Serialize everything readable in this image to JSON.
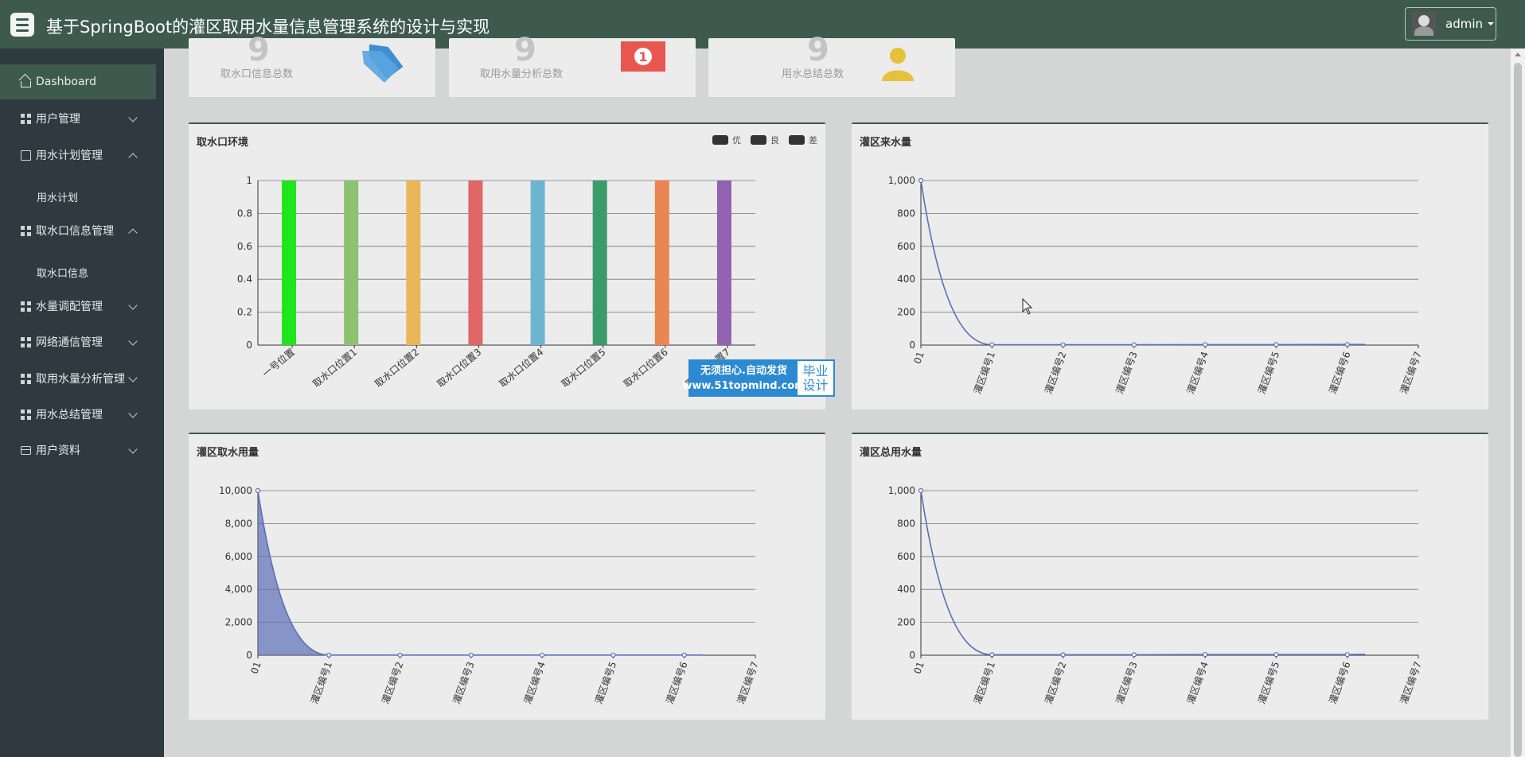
{
  "header": {
    "title": "基于SpringBoot的灌区取用水量信息管理系统的设计与实现",
    "user_name": "admin"
  },
  "sidebar": {
    "items": [
      {
        "label": "Dashboard",
        "icon": "home-icon",
        "active": true
      },
      {
        "label": "用户管理",
        "icon": "grid-icon",
        "expanded": false
      },
      {
        "label": "用水计划管理",
        "icon": "file-icon",
        "expanded": true,
        "children": [
          "用水计划"
        ]
      },
      {
        "label": "取水口信息管理",
        "icon": "grid-icon",
        "expanded": true,
        "children": [
          "取水口信息"
        ]
      },
      {
        "label": "水量调配管理",
        "icon": "grid-icon",
        "expanded": false
      },
      {
        "label": "网络通信管理",
        "icon": "grid-icon",
        "expanded": false
      },
      {
        "label": "取用水量分析管理",
        "icon": "grid-icon",
        "expanded": false
      },
      {
        "label": "用水总结管理",
        "icon": "grid-icon",
        "expanded": false
      },
      {
        "label": "用户资料",
        "icon": "card-icon",
        "expanded": false
      }
    ]
  },
  "stats": [
    {
      "label": "取水口信息总数",
      "value": "9",
      "icon": "tag-icon",
      "color": "#3d8fd1"
    },
    {
      "label": "取用水量分析总数",
      "value": "9",
      "icon": "money-icon",
      "color": "#e8574f"
    },
    {
      "label": "用水总结总数",
      "value": "9",
      "icon": "user-icon",
      "color": "#e6c13a"
    }
  ],
  "watermark": {
    "line1": "无须担心.自动发货",
    "line2": "www.51topmind.com",
    "right1": "毕业",
    "right2": "设计"
  },
  "chart_data": [
    {
      "type": "bar",
      "title": "取水口环境",
      "legend": [
        "优",
        "良",
        "差"
      ],
      "legend_position": "top-right",
      "categories": [
        "一号位置",
        "取水口位置1",
        "取水口位置2",
        "取水口位置3",
        "取水口位置4",
        "取水口位置5",
        "取水口位置6",
        "取水口位置7"
      ],
      "values": [
        1,
        1,
        1,
        1,
        1,
        1,
        1,
        1
      ],
      "colors": [
        "#1ee51e",
        "#8cc270",
        "#e9b65a",
        "#e06766",
        "#6db5cf",
        "#3d9a6b",
        "#ea8554",
        "#9362b1"
      ],
      "ylim": [
        0,
        1
      ],
      "yticks": [
        "0",
        "0.2",
        "0.4",
        "0.6",
        "0.8",
        "1"
      ],
      "grid": true
    },
    {
      "type": "line",
      "title": "灌区来水量",
      "categories": [
        "01",
        "灌区编号1",
        "灌区编号2",
        "灌区编号3",
        "灌区编号4",
        "灌区编号5",
        "灌区编号6",
        "灌区编号7"
      ],
      "values": [
        1000,
        2,
        2,
        2,
        3,
        3,
        4,
        4
      ],
      "ylim": [
        0,
        1000
      ],
      "yticks": [
        "0",
        "200",
        "400",
        "600",
        "800",
        "1,000"
      ],
      "color": "#5b6fb8",
      "grid": true
    },
    {
      "type": "area",
      "title": "灌区取水用量",
      "categories": [
        "01",
        "灌区编号1",
        "灌区编号2",
        "灌区编号3",
        "灌区编号4",
        "灌区编号5",
        "灌区编号6",
        "灌区编号7"
      ],
      "values": [
        10000,
        10,
        10,
        10,
        10,
        10,
        10,
        10
      ],
      "ylim": [
        0,
        10000
      ],
      "yticks": [
        "0",
        "2,000",
        "4,000",
        "6,000",
        "8,000",
        "10,000"
      ],
      "color": "#5b6fb8",
      "grid": true
    },
    {
      "type": "line",
      "title": "灌区总用水量",
      "categories": [
        "01",
        "灌区编号1",
        "灌区编号2",
        "灌区编号3",
        "灌区编号4",
        "灌区编号5",
        "灌区编号6",
        "灌区编号7"
      ],
      "values": [
        1000,
        3,
        3,
        3,
        4,
        4,
        4,
        5
      ],
      "ylim": [
        0,
        1000
      ],
      "yticks": [
        "0",
        "200",
        "400",
        "600",
        "800",
        "1,000"
      ],
      "color": "#5b6fb8",
      "grid": true
    }
  ]
}
